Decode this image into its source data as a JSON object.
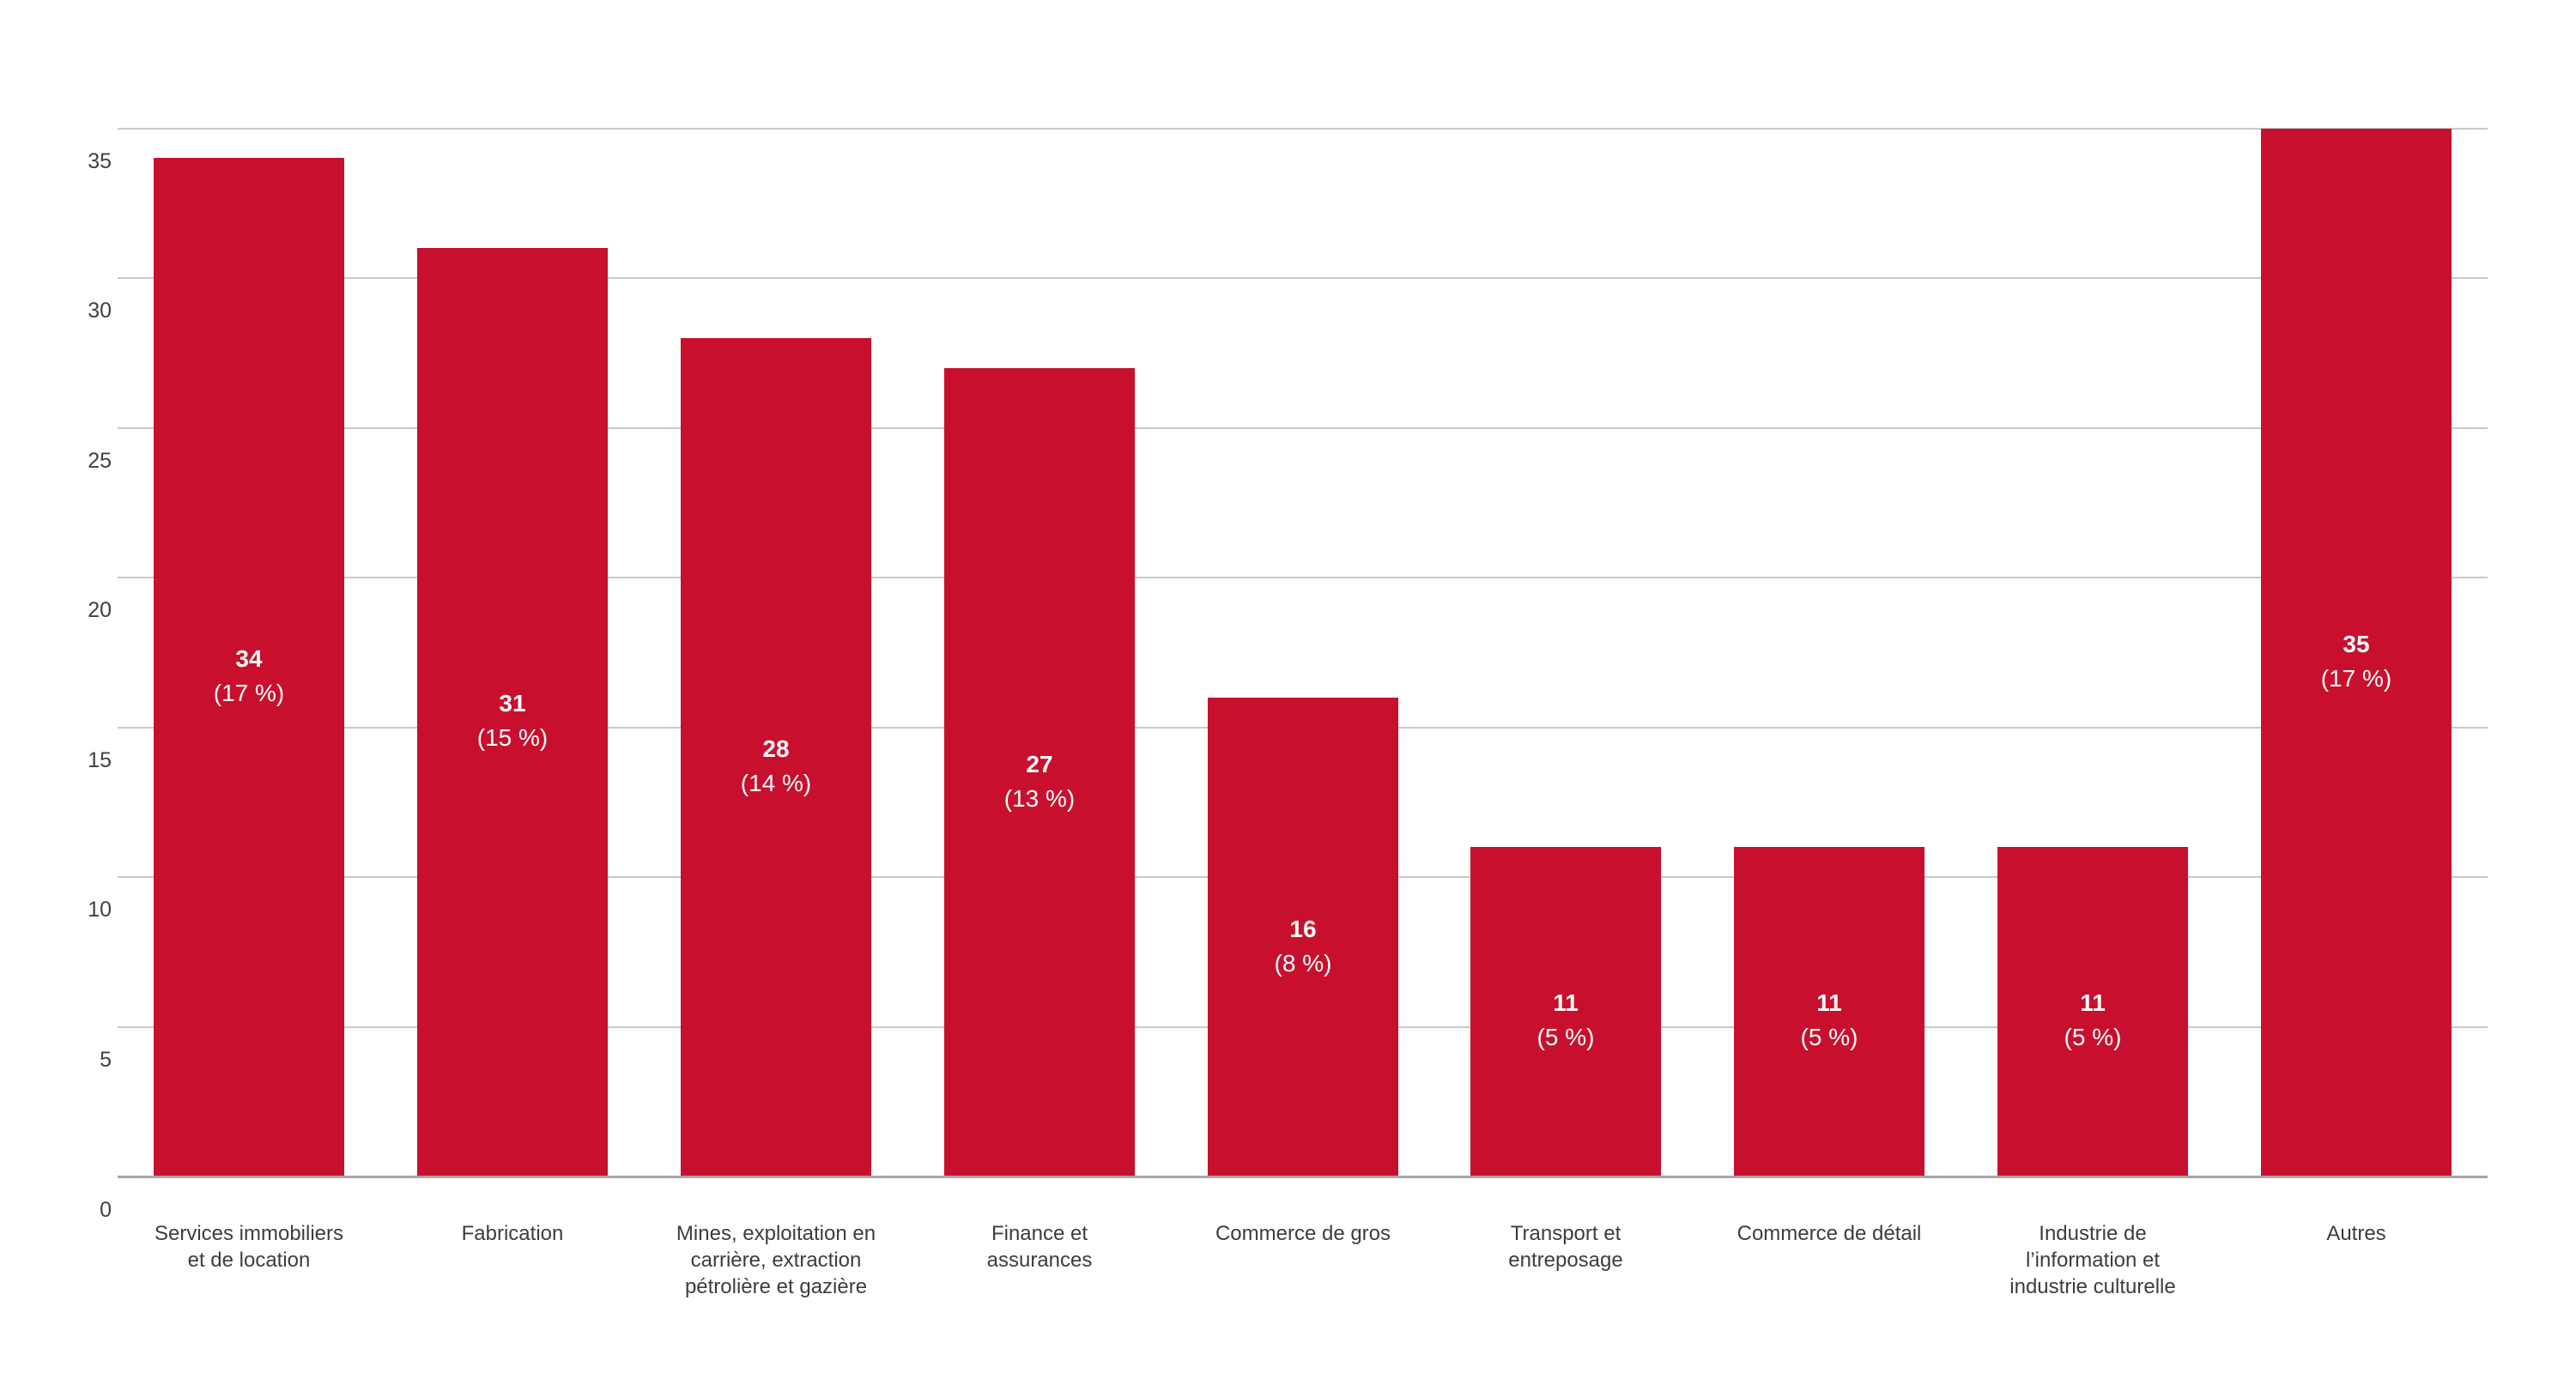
{
  "chart_data": {
    "type": "bar",
    "title": "",
    "categories": [
      "Services immobiliers et de location",
      "Fabrication",
      "Mines, exploitation en carrière, extraction pétrolière et gazière",
      "Finance et assurances",
      "Commerce de gros",
      "Transport et entreposage",
      "Commerce de détail",
      "Industrie de l’information et industrie culturelle",
      "Autres"
    ],
    "categories_lines": [
      [
        "Services immobiliers",
        "et de location"
      ],
      [
        "Fabrication"
      ],
      [
        "Mines, exploitation en",
        "carrière, extraction",
        "pétrolière et gazière"
      ],
      [
        "Finance et",
        "assurances"
      ],
      [
        "Commerce de gros"
      ],
      [
        "Transport et",
        "entreposage"
      ],
      [
        "Commerce de détail"
      ],
      [
        "Industrie de",
        "l’information et",
        "industrie culturelle"
      ],
      [
        "Autres"
      ]
    ],
    "values": [
      34,
      31,
      28,
      27,
      16,
      11,
      11,
      11,
      35
    ],
    "percent_labels": [
      "(17 %)",
      "(15 %)",
      "(14 %)",
      "(13 %)",
      "(8 %)",
      "(5 %)",
      "(5 %)",
      "(5 %)",
      "(17 %)"
    ],
    "y_ticks": [
      0,
      5,
      10,
      15,
      20,
      25,
      30,
      35
    ],
    "ylim": [
      0,
      35
    ],
    "grid": true,
    "legend": "none",
    "xlabel": "",
    "ylabel": "",
    "colors": {
      "bar": "#C8102E",
      "bar_label_text": "#FFFFFF",
      "gridline": "#C9C9C9",
      "axis_line": "#A6A6A6",
      "axis_text": "#404040",
      "background": "#FFFFFF"
    }
  }
}
